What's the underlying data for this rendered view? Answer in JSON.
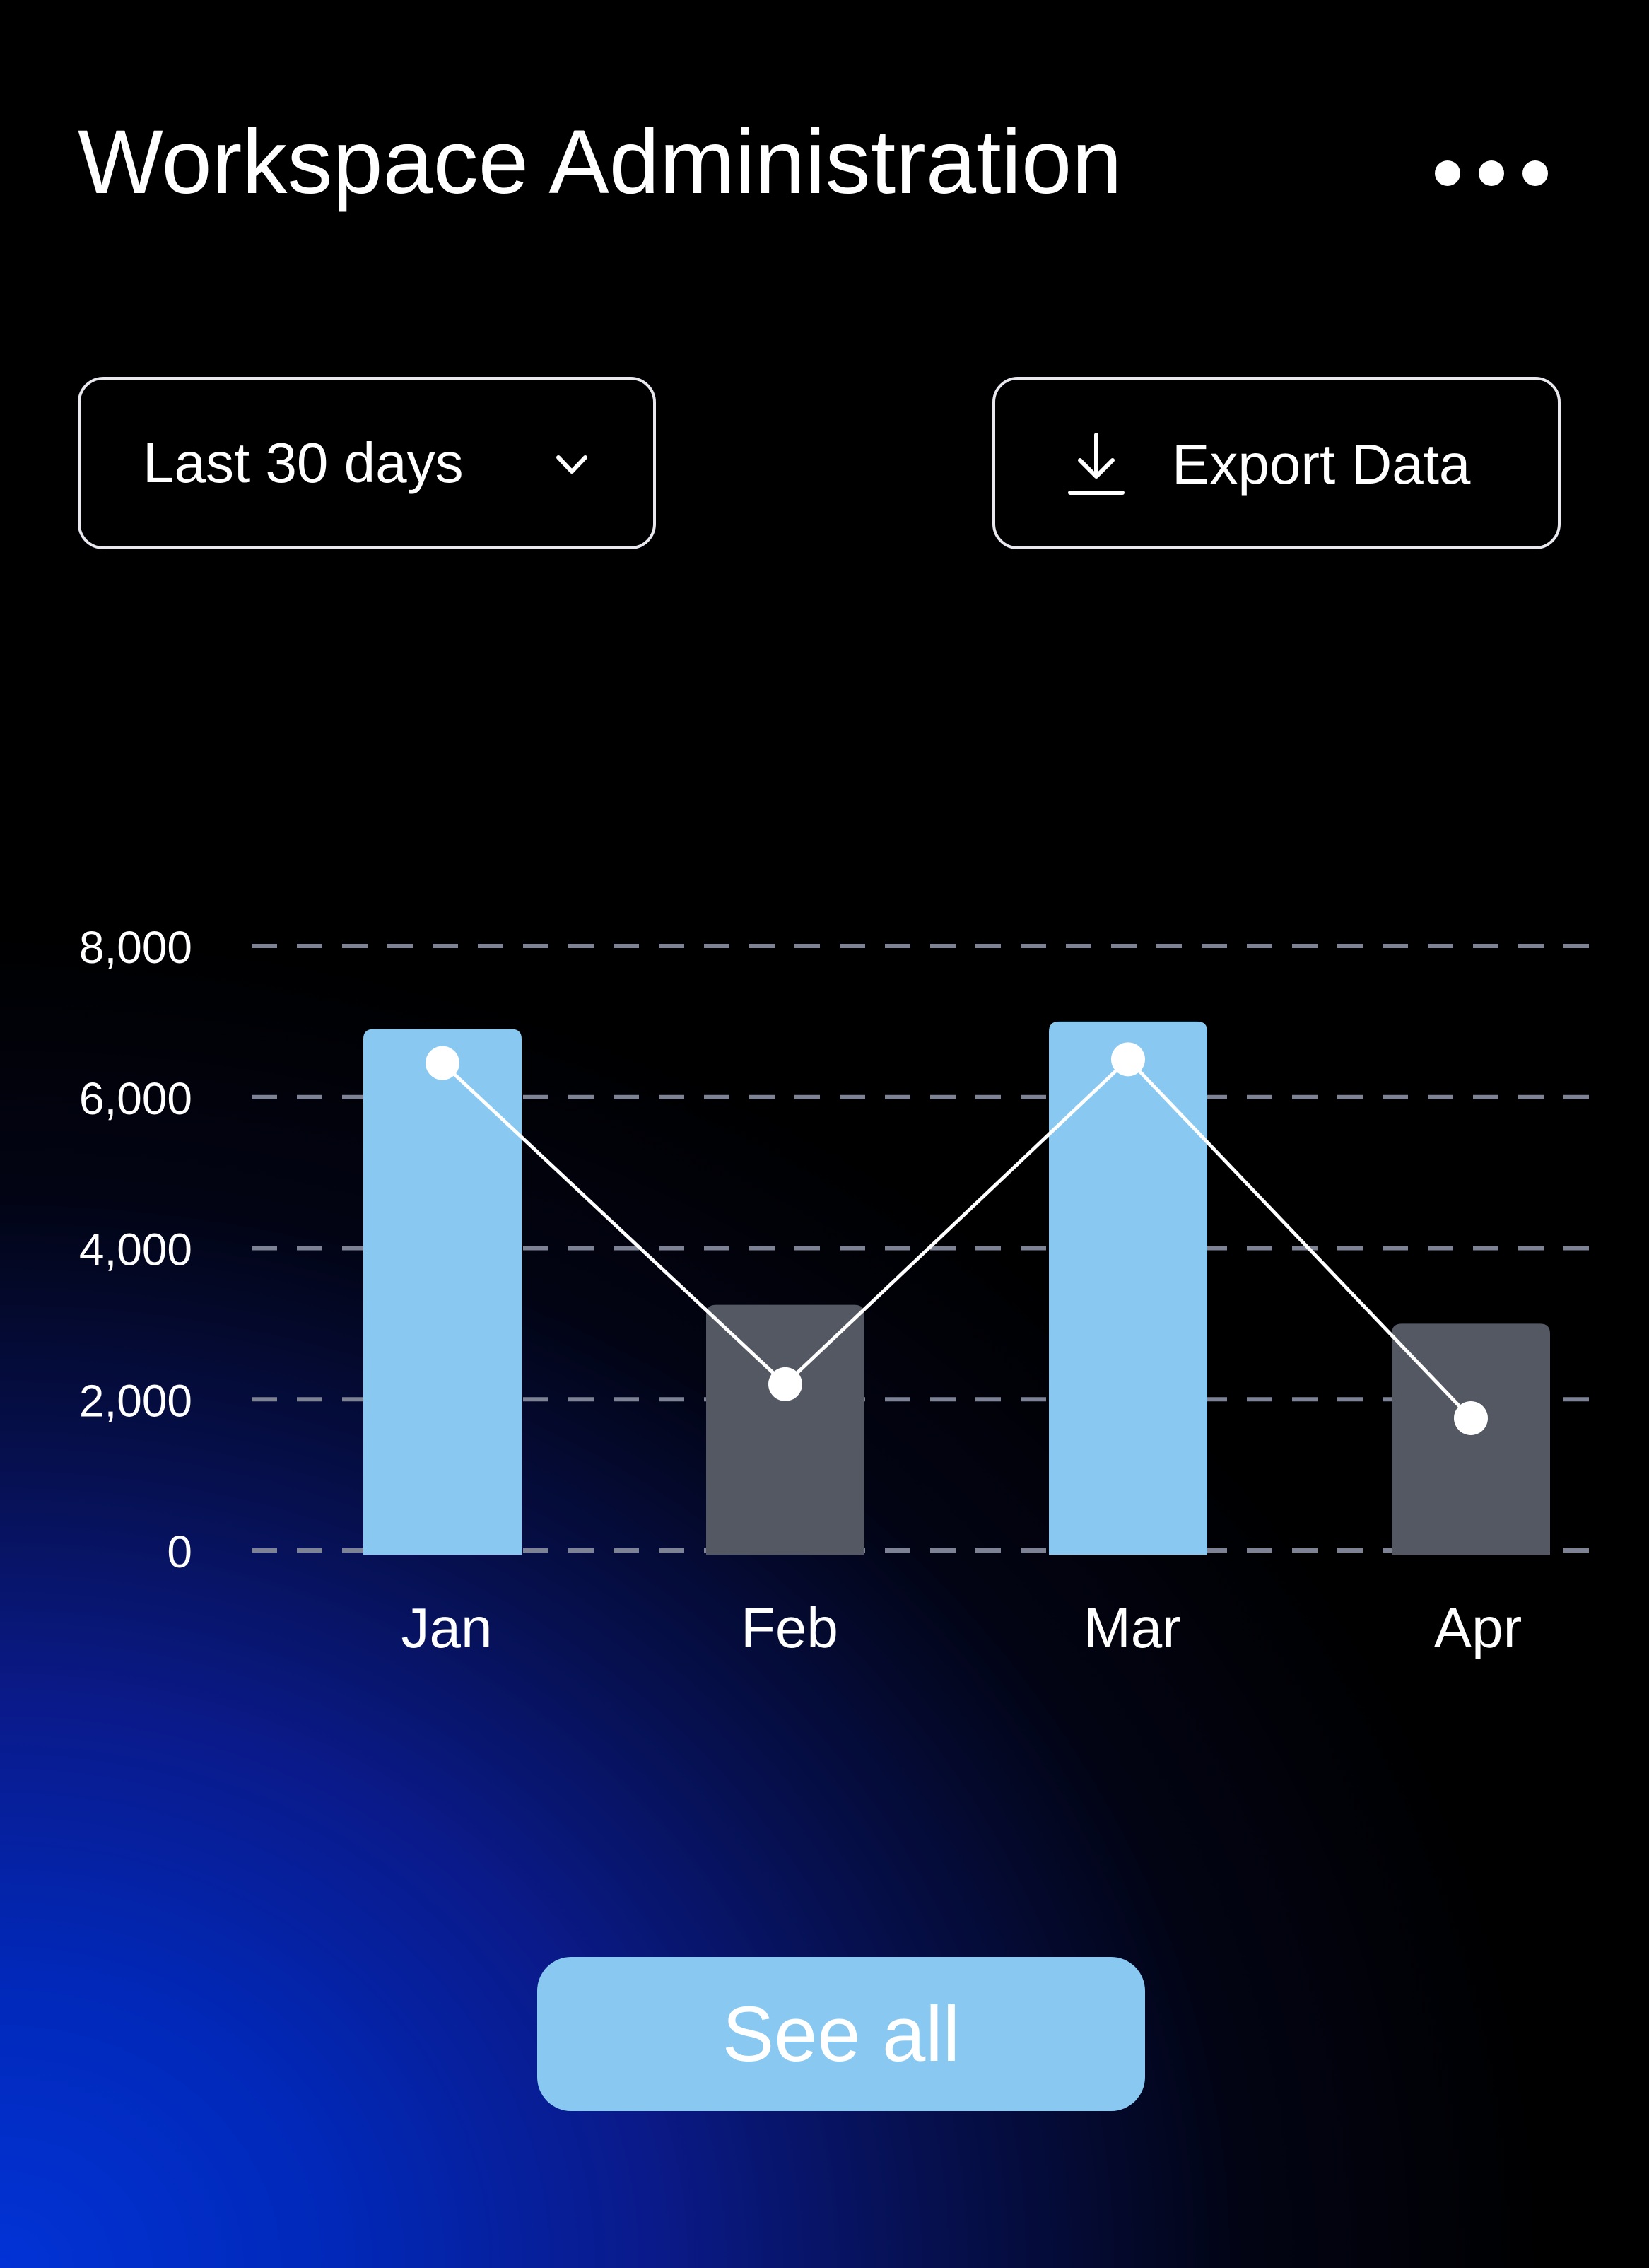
{
  "header": {
    "title": "Workspace Administration",
    "more_icon": "more-horizontal-icon"
  },
  "controls": {
    "range_select": {
      "value": "Last 30 days",
      "icon": "chevron-down-icon"
    },
    "export_button": {
      "label": "Export Data",
      "icon": "download-icon"
    }
  },
  "chart_data": {
    "type": "bar",
    "categories": [
      "Jan",
      "Feb",
      "Mar",
      "Apr"
    ],
    "series": [
      {
        "type": "bar",
        "values": [
          6900,
          3250,
          7000,
          3000
        ],
        "colors": [
          "#89c9f1",
          "#535862",
          "#89c9f1",
          "#535862"
        ]
      },
      {
        "type": "line",
        "values": [
          6450,
          2200,
          6500,
          1750
        ],
        "color": "#ffffff"
      }
    ],
    "y_ticks": [
      "0",
      "2,000",
      "4,000",
      "6,000",
      "8,000"
    ],
    "y_tick_values": [
      0,
      2000,
      4000,
      6000,
      8000
    ],
    "ylim": [
      0,
      8000
    ],
    "grid": "dashed",
    "legend": "none"
  },
  "footer": {
    "see_all_label": "See all"
  },
  "colors": {
    "accent": "#89c9f1",
    "muted_bar": "#535862",
    "grid": "#7d8294",
    "text": "#ffffff"
  }
}
